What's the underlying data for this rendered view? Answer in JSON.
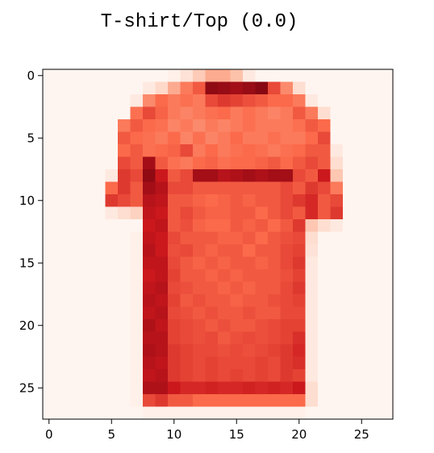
{
  "figure": {
    "title": "T-shirt/Top (0.0)"
  },
  "chart_data": {
    "type": "heatmap",
    "title": "T-shirt/Top (0.0)",
    "colormap": "Reds",
    "xlabel": "",
    "ylabel": "",
    "x_ticks": [
      "0",
      "5",
      "10",
      "15",
      "20",
      "25"
    ],
    "y_ticks": [
      "0",
      "5",
      "10",
      "15",
      "20",
      "25"
    ],
    "xlim": [
      -0.5,
      27.5
    ],
    "ylim": [
      27.5,
      -0.5
    ],
    "grid": false,
    "values": [
      [
        0,
        0,
        0,
        0,
        0,
        0,
        0,
        0,
        0,
        0,
        0.02,
        0.08,
        0.18,
        0.3,
        0.3,
        0.22,
        0.05,
        0,
        0,
        0,
        0,
        0,
        0,
        0,
        0,
        0,
        0,
        0
      ],
      [
        0,
        0,
        0,
        0,
        0,
        0,
        0,
        0,
        0.05,
        0.12,
        0.3,
        0.45,
        0.55,
        0.9,
        0.88,
        0.85,
        0.88,
        0.92,
        0.6,
        0.4,
        0.1,
        0,
        0,
        0,
        0,
        0,
        0,
        0
      ],
      [
        0,
        0,
        0,
        0,
        0,
        0,
        0,
        0.05,
        0.4,
        0.5,
        0.45,
        0.48,
        0.45,
        0.6,
        0.65,
        0.62,
        0.58,
        0.55,
        0.5,
        0.5,
        0.45,
        0.05,
        0,
        0,
        0,
        0,
        0,
        0
      ],
      [
        0,
        0,
        0,
        0,
        0,
        0,
        0,
        0.48,
        0.6,
        0.52,
        0.45,
        0.42,
        0.45,
        0.48,
        0.5,
        0.45,
        0.48,
        0.45,
        0.42,
        0.45,
        0.55,
        0.45,
        0.1,
        0,
        0,
        0,
        0,
        0
      ],
      [
        0,
        0,
        0,
        0,
        0,
        0,
        0.45,
        0.55,
        0.5,
        0.48,
        0.42,
        0.45,
        0.4,
        0.45,
        0.42,
        0.45,
        0.48,
        0.45,
        0.45,
        0.45,
        0.48,
        0.55,
        0.5,
        0,
        0,
        0,
        0,
        0
      ],
      [
        0,
        0,
        0,
        0,
        0,
        0,
        0.55,
        0.5,
        0.48,
        0.45,
        0.5,
        0.42,
        0.48,
        0.42,
        0.45,
        0.5,
        0.45,
        0.45,
        0.48,
        0.45,
        0.45,
        0.5,
        0.6,
        0,
        0,
        0,
        0,
        0
      ],
      [
        0,
        0,
        0,
        0,
        0,
        0,
        0.5,
        0.55,
        0.48,
        0.5,
        0.52,
        0.6,
        0.45,
        0.5,
        0.45,
        0.48,
        0.5,
        0.48,
        0.45,
        0.48,
        0.5,
        0.55,
        0.55,
        0.05,
        0,
        0,
        0,
        0
      ],
      [
        0,
        0,
        0,
        0,
        0,
        0,
        0.6,
        0.55,
        0.85,
        0.55,
        0.48,
        0.45,
        0.5,
        0.52,
        0.48,
        0.5,
        0.5,
        0.52,
        0.55,
        0.5,
        0.55,
        0.6,
        0.55,
        0.1,
        0,
        0,
        0,
        0
      ],
      [
        0,
        0,
        0,
        0,
        0,
        0.05,
        0.65,
        0.6,
        0.9,
        0.75,
        0.55,
        0.6,
        0.85,
        0.85,
        0.8,
        0.82,
        0.85,
        0.82,
        0.85,
        0.85,
        0.6,
        0.55,
        0.75,
        0.2,
        0,
        0,
        0,
        0
      ],
      [
        0,
        0,
        0,
        0,
        0,
        0.5,
        0.65,
        0.55,
        0.85,
        0.8,
        0.6,
        0.6,
        0.55,
        0.55,
        0.55,
        0.55,
        0.55,
        0.55,
        0.55,
        0.6,
        0.55,
        0.65,
        0.6,
        0.45,
        0,
        0,
        0,
        0
      ],
      [
        0,
        0,
        0,
        0,
        0,
        0.65,
        0.6,
        0.55,
        0.8,
        0.78,
        0.55,
        0.55,
        0.52,
        0.5,
        0.52,
        0.55,
        0.52,
        0.55,
        0.55,
        0.6,
        0.65,
        0.7,
        0.55,
        0.6,
        0,
        0,
        0,
        0
      ],
      [
        0,
        0,
        0,
        0,
        0,
        0.05,
        0.1,
        0.15,
        0.78,
        0.75,
        0.55,
        0.6,
        0.55,
        0.52,
        0.52,
        0.55,
        0.55,
        0.5,
        0.55,
        0.6,
        0.55,
        0.7,
        0.55,
        0.65,
        0,
        0,
        0,
        0
      ],
      [
        0,
        0,
        0,
        0,
        0,
        0,
        0,
        0,
        0.75,
        0.78,
        0.55,
        0.58,
        0.52,
        0.5,
        0.5,
        0.55,
        0.52,
        0.55,
        0.5,
        0.55,
        0.65,
        0.2,
        0.1,
        0.05,
        0,
        0,
        0,
        0
      ],
      [
        0,
        0,
        0,
        0,
        0,
        0,
        0,
        0.02,
        0.78,
        0.75,
        0.6,
        0.55,
        0.55,
        0.55,
        0.52,
        0.52,
        0.55,
        0.5,
        0.55,
        0.58,
        0.6,
        0.1,
        0,
        0,
        0,
        0,
        0,
        0
      ],
      [
        0,
        0,
        0,
        0,
        0,
        0,
        0,
        0.02,
        0.8,
        0.75,
        0.58,
        0.6,
        0.55,
        0.52,
        0.55,
        0.55,
        0.5,
        0.55,
        0.55,
        0.6,
        0.62,
        0.08,
        0,
        0,
        0,
        0,
        0,
        0
      ],
      [
        0,
        0,
        0,
        0,
        0,
        0,
        0,
        0.02,
        0.78,
        0.78,
        0.6,
        0.55,
        0.52,
        0.55,
        0.52,
        0.55,
        0.55,
        0.52,
        0.55,
        0.6,
        0.65,
        0.05,
        0,
        0,
        0,
        0,
        0,
        0
      ],
      [
        0,
        0,
        0,
        0,
        0,
        0,
        0,
        0.02,
        0.75,
        0.78,
        0.62,
        0.55,
        0.55,
        0.52,
        0.55,
        0.52,
        0.55,
        0.55,
        0.55,
        0.58,
        0.62,
        0.05,
        0,
        0,
        0,
        0,
        0,
        0
      ],
      [
        0,
        0,
        0,
        0,
        0,
        0,
        0,
        0.02,
        0.78,
        0.8,
        0.6,
        0.58,
        0.55,
        0.55,
        0.52,
        0.55,
        0.52,
        0.55,
        0.55,
        0.6,
        0.65,
        0.05,
        0,
        0,
        0,
        0,
        0,
        0
      ],
      [
        0,
        0,
        0,
        0,
        0,
        0,
        0,
        0.02,
        0.8,
        0.78,
        0.62,
        0.55,
        0.58,
        0.55,
        0.55,
        0.52,
        0.55,
        0.55,
        0.58,
        0.6,
        0.62,
        0.05,
        0,
        0,
        0,
        0,
        0,
        0
      ],
      [
        0,
        0,
        0,
        0,
        0,
        0,
        0,
        0.02,
        0.78,
        0.8,
        0.6,
        0.58,
        0.55,
        0.58,
        0.55,
        0.55,
        0.58,
        0.55,
        0.55,
        0.6,
        0.6,
        0.05,
        0,
        0,
        0,
        0,
        0,
        0
      ],
      [
        0,
        0,
        0,
        0,
        0,
        0,
        0,
        0.02,
        0.82,
        0.78,
        0.62,
        0.6,
        0.58,
        0.55,
        0.58,
        0.55,
        0.55,
        0.58,
        0.6,
        0.62,
        0.62,
        0.05,
        0,
        0,
        0,
        0,
        0,
        0
      ],
      [
        0,
        0,
        0,
        0,
        0,
        0,
        0,
        0.02,
        0.8,
        0.8,
        0.62,
        0.6,
        0.58,
        0.6,
        0.55,
        0.58,
        0.6,
        0.58,
        0.6,
        0.62,
        0.68,
        0.05,
        0,
        0,
        0,
        0,
        0,
        0
      ],
      [
        0,
        0,
        0,
        0,
        0,
        0,
        0,
        0.02,
        0.82,
        0.8,
        0.65,
        0.62,
        0.6,
        0.6,
        0.58,
        0.6,
        0.58,
        0.6,
        0.62,
        0.65,
        0.7,
        0.05,
        0,
        0,
        0,
        0,
        0,
        0
      ],
      [
        0,
        0,
        0,
        0,
        0,
        0,
        0,
        0.02,
        0.8,
        0.78,
        0.65,
        0.62,
        0.6,
        0.62,
        0.6,
        0.6,
        0.6,
        0.62,
        0.6,
        0.65,
        0.68,
        0.05,
        0,
        0,
        0,
        0,
        0,
        0
      ],
      [
        0,
        0,
        0,
        0,
        0,
        0,
        0,
        0.02,
        0.78,
        0.8,
        0.65,
        0.62,
        0.6,
        0.62,
        0.6,
        0.62,
        0.6,
        0.62,
        0.6,
        0.65,
        0.62,
        0.05,
        0,
        0,
        0,
        0,
        0,
        0
      ],
      [
        0,
        0,
        0,
        0,
        0,
        0,
        0,
        0.02,
        0.82,
        0.82,
        0.75,
        0.7,
        0.7,
        0.72,
        0.7,
        0.7,
        0.72,
        0.7,
        0.72,
        0.7,
        0.75,
        0.1,
        0,
        0,
        0,
        0,
        0,
        0
      ],
      [
        0,
        0,
        0,
        0,
        0,
        0,
        0,
        0.02,
        0.6,
        0.65,
        0.55,
        0.55,
        0.5,
        0.5,
        0.5,
        0.5,
        0.5,
        0.5,
        0.5,
        0.5,
        0.5,
        0.1,
        0,
        0,
        0,
        0,
        0,
        0
      ],
      [
        0,
        0,
        0,
        0,
        0,
        0,
        0,
        0,
        0.02,
        0.02,
        0.02,
        0.02,
        0.02,
        0.02,
        0.02,
        0.02,
        0.02,
        0.02,
        0.02,
        0.02,
        0.02,
        0,
        0,
        0,
        0,
        0,
        0,
        0
      ]
    ],
    "colors": {
      "low": "#fff5f0",
      "mid1": "#fcbba1",
      "mid2": "#fb6a4a",
      "mid3": "#cb181d",
      "high": "#67000d"
    }
  }
}
